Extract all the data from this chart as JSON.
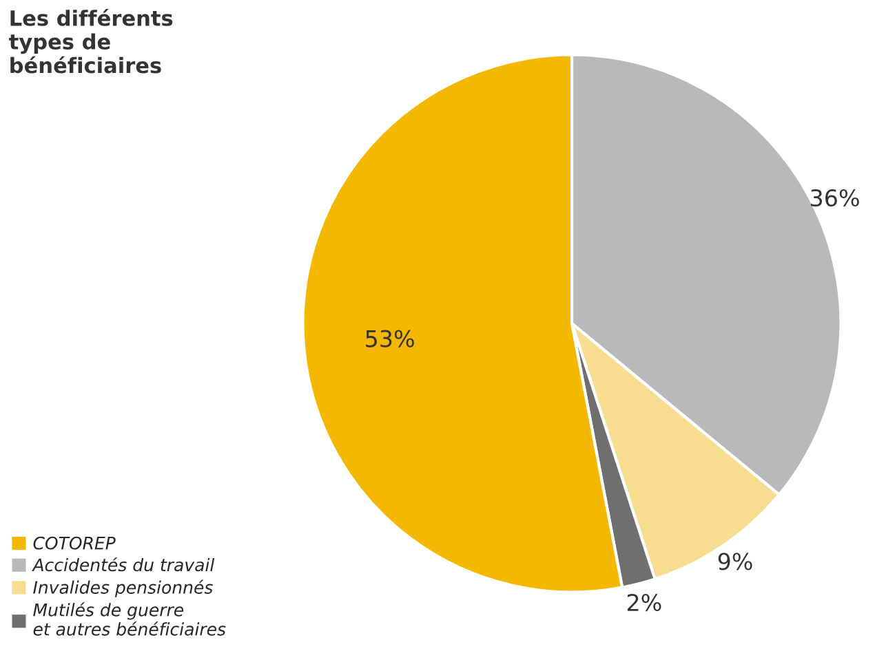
{
  "chart_data": {
    "type": "pie",
    "title": "Les différents\ntypes de\nbénéficiaires",
    "categories": [
      "COTOREP",
      "Accidentés du travail",
      "Invalides pensionnés",
      "Mutilés de guerre\net autres bénéficiaires"
    ],
    "values": [
      53,
      36,
      9,
      2
    ],
    "colors": [
      "#f4b800",
      "#b9b9b9",
      "#f8dc90",
      "#6f6f6f"
    ],
    "value_labels": [
      "53%",
      "36%",
      "9%",
      "2%"
    ],
    "legend": "bottom left"
  }
}
